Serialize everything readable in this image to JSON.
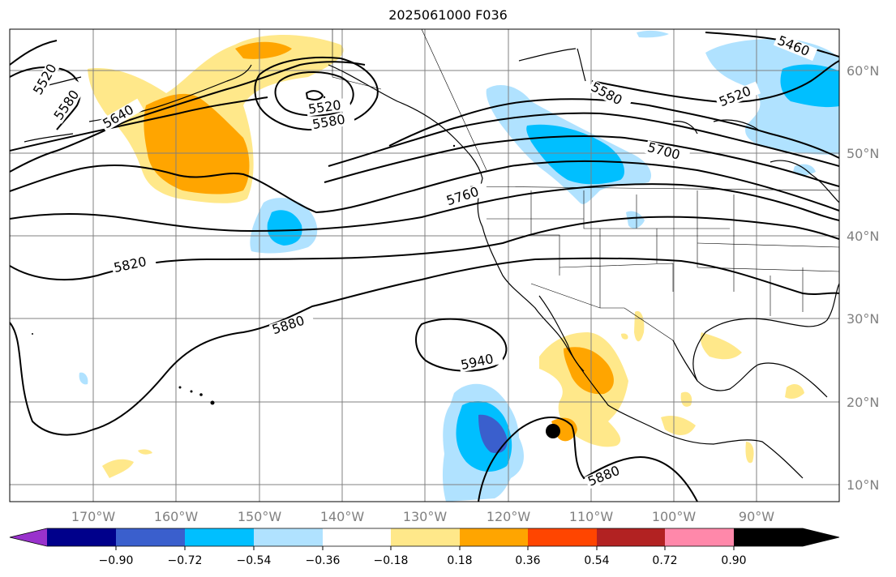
{
  "title": "2025061000 F036",
  "lat_labels": [
    "60°N",
    "50°N",
    "40°N",
    "30°N",
    "20°N",
    "10°N"
  ],
  "lon_labels": [
    "170°W",
    "160°W",
    "150°W",
    "140°W",
    "130°W",
    "120°W",
    "110°W",
    "100°W",
    "90°W"
  ],
  "contour_labels": [
    "5460",
    "5520",
    "5520",
    "5520",
    "5580",
    "5580",
    "5580",
    "5640",
    "5700",
    "5760",
    "5820",
    "5880",
    "5880",
    "5940"
  ],
  "colorbar": {
    "tick_labels": [
      "−0.90",
      "−0.72",
      "−0.54",
      "−0.36",
      "−0.18",
      "0.18",
      "0.36",
      "0.54",
      "0.72",
      "0.90"
    ],
    "colors": [
      "#9932cc",
      "#00008b",
      "#3a5fcd",
      "#00bfff",
      "#b0e2ff",
      "#ffffff",
      "#ffe88a",
      "#ffa500",
      "#ff4500",
      "#b22222",
      "#ff88aa"
    ]
  },
  "marker": "center-dot"
}
